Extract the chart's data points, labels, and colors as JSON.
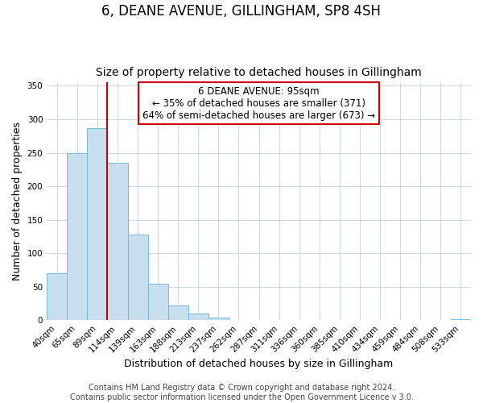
{
  "title": "6, DEANE AVENUE, GILLINGHAM, SP8 4SH",
  "subtitle": "Size of property relative to detached houses in Gillingham",
  "xlabel": "Distribution of detached houses by size in Gillingham",
  "ylabel": "Number of detached properties",
  "categories": [
    "40sqm",
    "65sqm",
    "89sqm",
    "114sqm",
    "139sqm",
    "163sqm",
    "188sqm",
    "213sqm",
    "237sqm",
    "262sqm",
    "287sqm",
    "311sqm",
    "336sqm",
    "360sqm",
    "385sqm",
    "410sqm",
    "434sqm",
    "459sqm",
    "484sqm",
    "508sqm",
    "533sqm"
  ],
  "values": [
    70,
    250,
    287,
    235,
    128,
    54,
    22,
    10,
    4,
    0,
    0,
    0,
    0,
    0,
    0,
    0,
    0,
    0,
    0,
    0,
    2
  ],
  "bar_color": "#c8dff0",
  "bar_edge_color": "#7ab8d9",
  "property_line_index": 2.48,
  "property_line_color": "#cc0000",
  "annotation_line1": "6 DEANE AVENUE: 95sqm",
  "annotation_line2": "← 35% of detached houses are smaller (371)",
  "annotation_line3": "64% of semi-detached houses are larger (673) →",
  "annotation_box_facecolor": "#ffffff",
  "annotation_box_edgecolor": "#cc0000",
  "ylim": [
    0,
    355
  ],
  "yticks": [
    0,
    50,
    100,
    150,
    200,
    250,
    300,
    350
  ],
  "footer_line1": "Contains HM Land Registry data © Crown copyright and database right 2024.",
  "footer_line2": "Contains public sector information licensed under the Open Government Licence v 3.0.",
  "background_color": "#ffffff",
  "grid_color": "#ccd9e8",
  "title_fontsize": 12,
  "subtitle_fontsize": 10,
  "axis_label_fontsize": 9,
  "tick_fontsize": 7.5,
  "annotation_fontsize": 8.5,
  "footer_fontsize": 7
}
